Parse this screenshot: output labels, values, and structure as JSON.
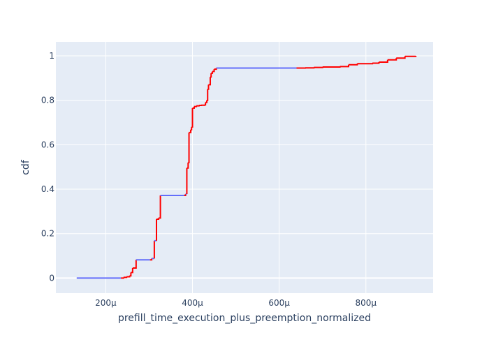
{
  "chart_data": {
    "type": "line",
    "xlabel": "prefill_time_execution_plus_preemption_normalized",
    "ylabel": "cdf",
    "x_unit_suffix": "μ",
    "xlim": [
      85,
      955
    ],
    "ylim": [
      -0.068,
      1.063
    ],
    "x_ticks": [
      200,
      400,
      600,
      800
    ],
    "x_tick_labels": [
      "200μ",
      "400μ",
      "600μ",
      "800μ"
    ],
    "y_ticks": [
      0,
      0.2,
      0.4,
      0.6,
      0.8,
      1
    ],
    "y_tick_labels": [
      "0",
      "0.2",
      "0.4",
      "0.6",
      "0.8",
      "1"
    ],
    "grid": true,
    "legend": "none",
    "colors": {
      "plot_background": "#e5ecf6",
      "grid": "#ffffff",
      "step_line": "#ff0000",
      "flat_segment": "#636efa",
      "text": "#2a3f5f"
    },
    "series": [
      {
        "points": [
          [
            133,
            0
          ],
          [
            235,
            0
          ],
          [
            241,
            0.003
          ],
          [
            248,
            0.006
          ],
          [
            255,
            0.01
          ],
          [
            258,
            0.025
          ],
          [
            262,
            0.045
          ],
          [
            270,
            0.082
          ],
          [
            302,
            0.082
          ],
          [
            306,
            0.088
          ],
          [
            312,
            0.088
          ],
          [
            312,
            0.168
          ],
          [
            317,
            0.168
          ],
          [
            317,
            0.265
          ],
          [
            322,
            0.27
          ],
          [
            326,
            0.372
          ],
          [
            381,
            0.372
          ],
          [
            384,
            0.378
          ],
          [
            387,
            0.378
          ],
          [
            387,
            0.495
          ],
          [
            390,
            0.52
          ],
          [
            392,
            0.655
          ],
          [
            396,
            0.668
          ],
          [
            398,
            0.68
          ],
          [
            400,
            0.765
          ],
          [
            404,
            0.772
          ],
          [
            409,
            0.775
          ],
          [
            415,
            0.777
          ],
          [
            420,
            0.778
          ],
          [
            428,
            0.78
          ],
          [
            430,
            0.79
          ],
          [
            433,
            0.8
          ],
          [
            435,
            0.85
          ],
          [
            437,
            0.87
          ],
          [
            441,
            0.905
          ],
          [
            443,
            0.922
          ],
          [
            446,
            0.93
          ],
          [
            450,
            0.94
          ],
          [
            455,
            0.945
          ],
          [
            640,
            0.945
          ],
          [
            660,
            0.946
          ],
          [
            680,
            0.948
          ],
          [
            700,
            0.95
          ],
          [
            740,
            0.952
          ],
          [
            760,
            0.96
          ],
          [
            780,
            0.965
          ],
          [
            815,
            0.967
          ],
          [
            830,
            0.972
          ],
          [
            850,
            0.982
          ],
          [
            870,
            0.99
          ],
          [
            890,
            0.998
          ],
          [
            915,
            1.0
          ]
        ]
      }
    ]
  }
}
